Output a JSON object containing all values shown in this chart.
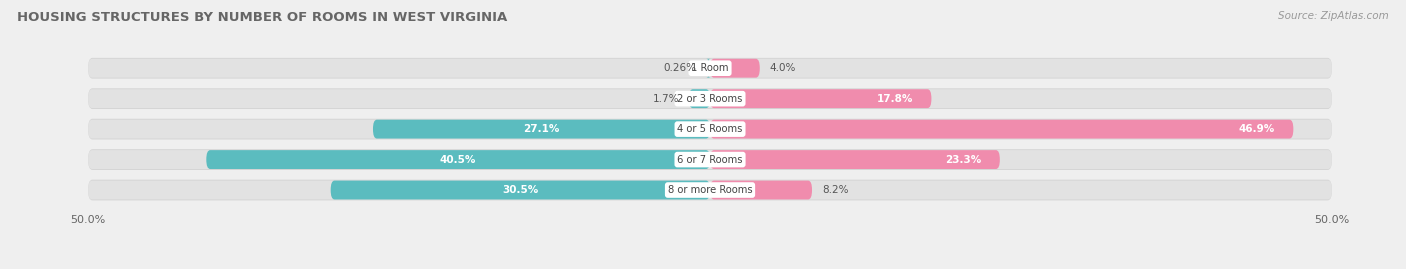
{
  "title": "HOUSING STRUCTURES BY NUMBER OF ROOMS IN WEST VIRGINIA",
  "source": "Source: ZipAtlas.com",
  "categories": [
    "1 Room",
    "2 or 3 Rooms",
    "4 or 5 Rooms",
    "6 or 7 Rooms",
    "8 or more Rooms"
  ],
  "owner_values": [
    0.26,
    1.7,
    27.1,
    40.5,
    30.5
  ],
  "renter_values": [
    4.0,
    17.8,
    46.9,
    23.3,
    8.2
  ],
  "owner_color": "#5bbcbf",
  "renter_color": "#f08cad",
  "background_color": "#efefef",
  "bar_background_color": "#e2e2e2",
  "bar_background_border": "#d4d4d4",
  "title_fontsize": 9.5,
  "source_fontsize": 7.5,
  "bar_height": 0.62,
  "xlim_left": -52,
  "xlim_right": 52,
  "owner_inside_threshold": 5.0,
  "renter_inside_threshold": 10.0
}
